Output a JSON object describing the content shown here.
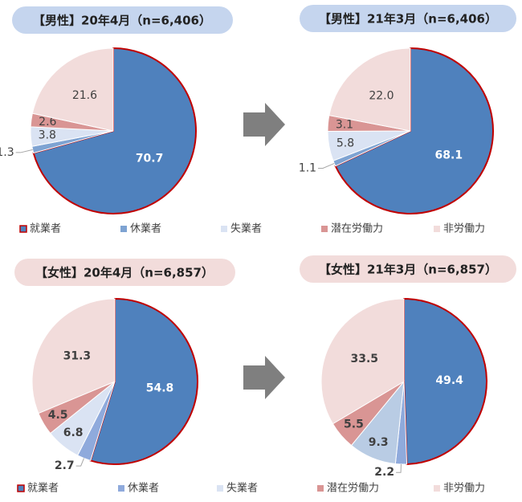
{
  "chart_data": [
    {
      "type": "pie",
      "title": "【男性】20年4月（n=6,406）",
      "categories": [
        "就業者",
        "休業者",
        "失業者",
        "潜在労働力",
        "非労働力"
      ],
      "values": [
        70.7,
        1.3,
        3.8,
        2.6,
        21.6
      ],
      "colors": [
        "#4f81bd",
        "#7ea3d2",
        "#dae3f3",
        "#d99594",
        "#f2dcdb"
      ]
    },
    {
      "type": "pie",
      "title": "【男性】21年3月（n=6,406）",
      "values": [
        68.1,
        1.1,
        5.8,
        3.1,
        22
      ],
      "value_labels": [
        "68.1",
        "1.1",
        "5.8",
        "3.1",
        "22.0"
      ],
      "colors": [
        "#4f81bd",
        "#7ea3d2",
        "#dae3f3",
        "#d99594",
        "#f2dcdb"
      ]
    },
    {
      "type": "pie",
      "title": "【女性】20年4月（n=6,857）",
      "categories": [
        "就業者",
        "休業者",
        "失業者",
        "潜在労働力",
        "非労働力"
      ],
      "values": [
        54.8,
        2.7,
        6.8,
        4.5,
        31.3
      ],
      "colors": [
        "#4f81bd",
        "#8faadc",
        "#dae3f3",
        "#d99594",
        "#f2dcdb"
      ]
    },
    {
      "type": "pie",
      "title": "【女性】21年3月（n=6,857）",
      "values": [
        49.4,
        2.2,
        9.3,
        5.5,
        33.5
      ],
      "colors": [
        "#4f81bd",
        "#8faadc",
        "#b9cce4",
        "#d99594",
        "#f2dcdb"
      ]
    }
  ]
}
